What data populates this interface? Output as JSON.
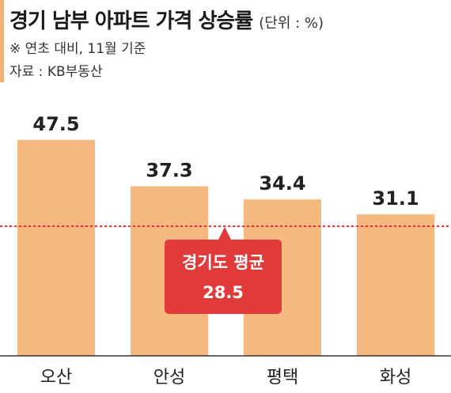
{
  "header": {
    "title": "경기 남부 아파트 가격 상승률",
    "unit": "(단위 : %)",
    "note": "※ 연초 대비, 11월 기준",
    "source": "자료 : KB부동산"
  },
  "chart_data": {
    "type": "bar",
    "title": "경기 남부 아파트 가격 상승률",
    "categories": [
      "오산",
      "안성",
      "평택",
      "화성"
    ],
    "values": [
      47.5,
      37.3,
      34.4,
      31.1
    ],
    "value_labels": [
      "47.5",
      "37.3",
      "34.4",
      "31.1"
    ],
    "unit": "%",
    "ylim": [
      0,
      56
    ],
    "grid": false,
    "reference_line": {
      "label": "경기도 평균",
      "value": 28.5,
      "value_label": "28.5",
      "line_color": "#e0302e",
      "callout_color": "#e03a3a"
    },
    "bar_color": "#f5b87e",
    "accent_color": "#f0b27a"
  }
}
